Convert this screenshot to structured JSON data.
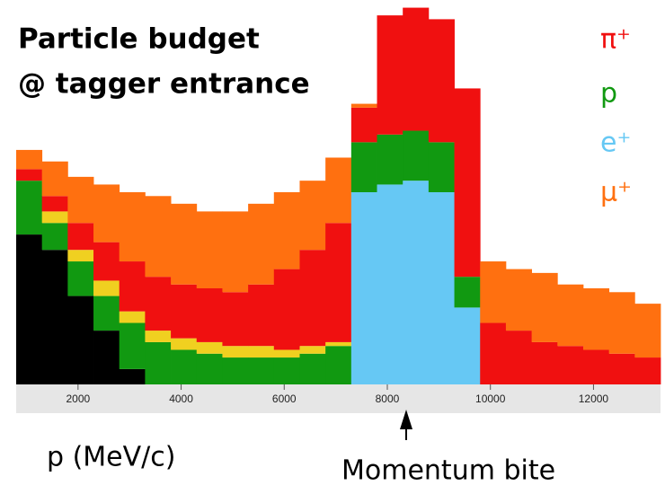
{
  "chart_data": {
    "type": "stacked_histogram",
    "title_lines": [
      "Particle budget",
      "@ tagger entrance"
    ],
    "x_label": "p (MeV/c)",
    "annotation": "Momentum bite",
    "bins": [
      800,
      1300,
      1800,
      2300,
      2800,
      3300,
      3800,
      4300,
      4800,
      5300,
      5800,
      6300,
      6800,
      7300,
      7800,
      8300,
      8800,
      9300,
      9800,
      10300,
      10800,
      11300,
      11800,
      12300,
      12800,
      13300
    ],
    "series": [
      {
        "color": "#000000",
        "values": [
          39,
          35,
          23,
          14,
          4,
          0,
          0,
          0,
          0,
          0,
          0,
          0,
          0,
          0,
          0,
          0,
          0,
          0,
          0,
          0,
          0,
          0,
          0,
          0,
          0
        ]
      },
      {
        "name": "e⁺",
        "color": "#66c8f4",
        "values": [
          0,
          0,
          0,
          0,
          0,
          0,
          0,
          0,
          0,
          0,
          0,
          0,
          0,
          50,
          52,
          53,
          50,
          20,
          0,
          0,
          0,
          0,
          0,
          0,
          0
        ]
      },
      {
        "name": "p",
        "color": "#119911",
        "values": [
          14,
          7,
          9,
          9,
          12,
          11,
          9,
          8,
          7,
          7,
          7,
          8,
          10,
          13,
          13,
          13,
          13,
          8,
          0,
          0,
          0,
          0,
          0,
          0,
          0
        ]
      },
      {
        "color": "#f0d020",
        "values": [
          0,
          3,
          3,
          4,
          3,
          3,
          3,
          3,
          3,
          3,
          2,
          2,
          1,
          0,
          0,
          0,
          0,
          0,
          0,
          0,
          0,
          0,
          0,
          0,
          0
        ]
      },
      {
        "name": "π⁺",
        "color": "#f01010",
        "values": [
          3,
          4,
          7,
          10,
          13,
          14,
          14,
          14,
          14,
          16,
          21,
          25,
          31,
          9,
          31,
          32,
          32,
          49,
          16,
          14,
          11,
          10,
          9,
          8,
          7
        ]
      },
      {
        "name": "μ⁺",
        "color": "#ff7010",
        "values": [
          5,
          9,
          12,
          15,
          18,
          21,
          21,
          20,
          21,
          21,
          20,
          18,
          17,
          1,
          0,
          0,
          0,
          0,
          16,
          16,
          18,
          16,
          16,
          16,
          14
        ]
      }
    ],
    "legend_order": [
      4,
      2,
      1,
      5
    ],
    "xlim": [
      800,
      13300
    ],
    "xticks": [
      2000,
      4000,
      6000,
      8000,
      10000,
      12000
    ],
    "ylim": [
      0,
      100
    ]
  }
}
